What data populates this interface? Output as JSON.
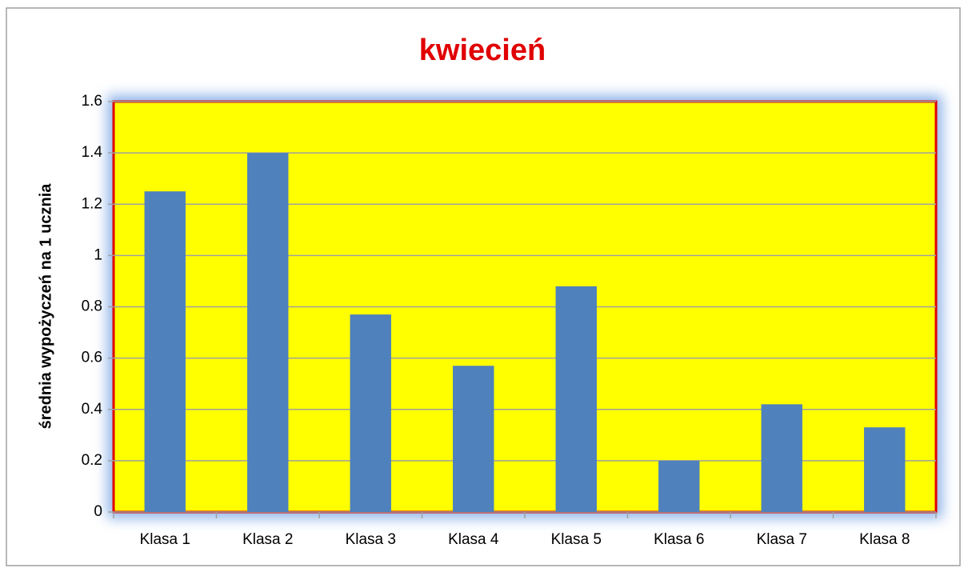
{
  "chart_data": {
    "type": "bar",
    "title": "kwiecień",
    "y_label": "średnia wypożyczeń na 1 ucznia",
    "categories": [
      "Klasa 1",
      "Klasa 2",
      "Klasa 3",
      "Klasa 4",
      "Klasa 5",
      "Klasa 6",
      "Klasa 7",
      "Klasa 8"
    ],
    "values": [
      1.25,
      1.4,
      0.77,
      0.57,
      0.88,
      0.2,
      0.42,
      0.33
    ],
    "color": "#4f81bd",
    "ylim": [
      0,
      1.6
    ],
    "yticks": [
      0,
      0.2,
      0.4,
      0.6,
      0.8,
      1,
      1.2,
      1.4,
      1.6
    ],
    "grid": true
  }
}
